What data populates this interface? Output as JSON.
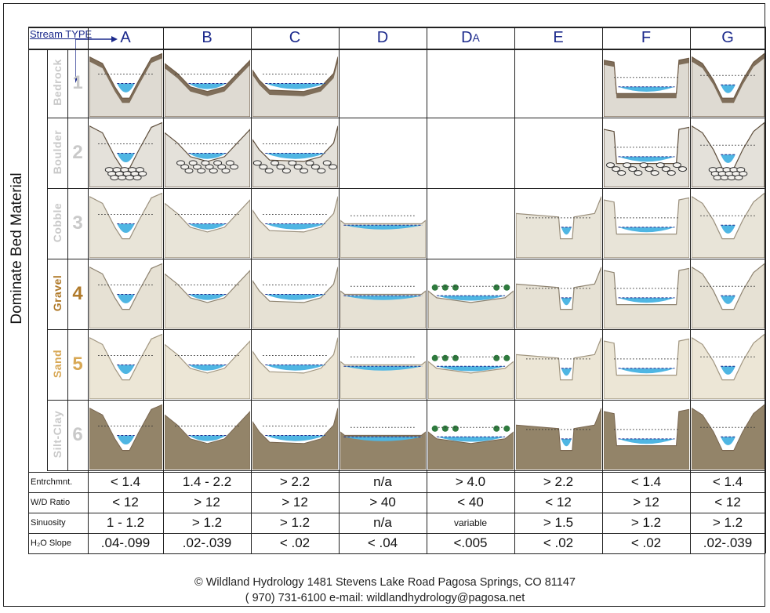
{
  "header": {
    "stream_type_label": "Stream TYPE",
    "types": [
      {
        "main": "A",
        "sub": ""
      },
      {
        "main": "B",
        "sub": ""
      },
      {
        "main": "C",
        "sub": ""
      },
      {
        "main": "D",
        "sub": ""
      },
      {
        "main": "D",
        "sub": "A"
      },
      {
        "main": "E",
        "sub": ""
      },
      {
        "main": "F",
        "sub": ""
      },
      {
        "main": "G",
        "sub": ""
      }
    ]
  },
  "dominate_label": "Dominate Bed Material",
  "materials": [
    {
      "name": "Bedrock",
      "number": "1",
      "color": "#c9c9c9"
    },
    {
      "name": "Boulder",
      "number": "2",
      "color": "#c9c9c9"
    },
    {
      "name": "Cobble",
      "number": "3",
      "color": "#c9c9c9"
    },
    {
      "name": "Gravel",
      "number": "4",
      "color": "#b07a2a"
    },
    {
      "name": "Sand",
      "number": "5",
      "color": "#d8a855"
    },
    {
      "name": "Silt-Clay",
      "number": "6",
      "color": "#c9c9c9"
    }
  ],
  "parameters": [
    {
      "label": "Entrchmnt.",
      "values": [
        "< 1.4",
        "1.4 - 2.2",
        "> 2.2",
        "n/a",
        "> 4.0",
        "> 2.2",
        "< 1.4",
        "< 1.4"
      ]
    },
    {
      "label": "W/D Ratio",
      "values": [
        "< 12",
        "> 12",
        "> 12",
        "> 40",
        "< 40",
        "< 12",
        "> 12",
        "< 12"
      ]
    },
    {
      "label": "Sinuosity",
      "values": [
        "1 - 1.2",
        "> 1.2",
        "> 1.2",
        "n/a",
        "variable",
        "> 1.5",
        "> 1.2",
        "> 1.2"
      ]
    },
    {
      "label": "H₂O Slope",
      "values": [
        ".04-.099",
        ".02-.039",
        "< .02",
        "< .04",
        "<.005",
        "< .02",
        "< .02",
        ".02-.039"
      ]
    }
  ],
  "footer": {
    "line1": "© Wildland Hydrology     1481 Stevens Lake Road Pagosa Springs, CO 81147",
    "line2": "( 970) 731-6100      e-mail: wildlandhydrology@pagosa.net"
  },
  "colors": {
    "water": "#4fb6e3",
    "bedrock": "#6e5a45",
    "gravel_fill": "#e6e1d4",
    "header_text": "#1c2a8c"
  }
}
